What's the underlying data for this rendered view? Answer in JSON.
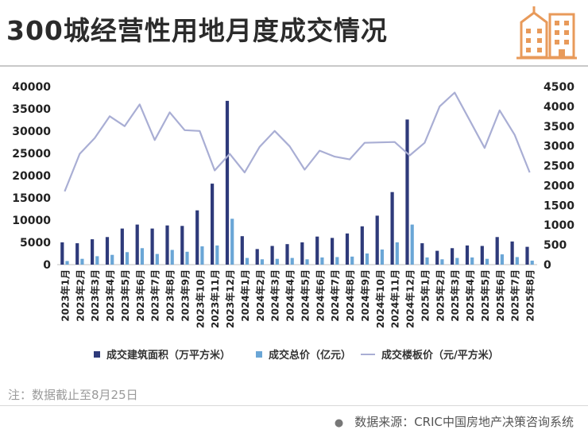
{
  "title": "300城经营性用地月度成交情况",
  "note": "注：数据截止至8月25日",
  "source": "数据来源：CRIC中国房地产决策咨询系统",
  "colors": {
    "area": "#2e3a7a",
    "total": "#6aa6d6",
    "price": "#a9aed4",
    "logo": "#e89a5a"
  },
  "icons": {
    "logo": "building-icon",
    "source_bullet": "bullet-dot-icon"
  },
  "chart_data": {
    "type": "bar",
    "categories": [
      "2023年1月",
      "2023年2月",
      "2023年3月",
      "2023年4月",
      "2023年5月",
      "2023年6月",
      "2023年7月",
      "2023年8月",
      "2023年9月",
      "2023年10月",
      "2023年11月",
      "2023年12月",
      "2024年1月",
      "2024年2月",
      "2024年3月",
      "2024年4月",
      "2024年5月",
      "2024年6月",
      "2024年7月",
      "2024年8月",
      "2024年9月",
      "2024年10月",
      "2024年11月",
      "2024年12月",
      "2025年1月",
      "2025年2月",
      "2025年3月",
      "2025年4月",
      "2025年5月",
      "2025年6月",
      "2025年7月",
      "2025年8月"
    ],
    "series": [
      {
        "name": "成交建筑面积（万平方米）",
        "type": "bar",
        "axis": "left",
        "values": [
          5000,
          4800,
          5700,
          6200,
          8100,
          9000,
          8100,
          8800,
          8700,
          12200,
          18200,
          36800,
          6400,
          3500,
          4200,
          4600,
          5000,
          6300,
          6000,
          7000,
          8600,
          11000,
          16300,
          32600,
          4800,
          3100,
          3700,
          4300,
          4200,
          6200,
          5200,
          4000
        ]
      },
      {
        "name": "成交总价（亿元）",
        "type": "bar",
        "axis": "left",
        "values": [
          800,
          1300,
          1900,
          2200,
          2800,
          3700,
          2400,
          3300,
          2900,
          4100,
          4300,
          10300,
          1500,
          1200,
          1300,
          1500,
          1200,
          1600,
          1700,
          1800,
          2500,
          3400,
          5000,
          9000,
          1600,
          1200,
          1500,
          1600,
          1300,
          2300,
          1700,
          900
        ]
      },
      {
        "name": "成交楼板价（元/平方米）",
        "type": "line",
        "axis": "right",
        "values": [
          1850,
          2800,
          3200,
          3750,
          3500,
          4050,
          3150,
          3850,
          3400,
          3380,
          2380,
          2800,
          2330,
          2980,
          3380,
          2990,
          2400,
          2880,
          2730,
          2660,
          3080,
          3090,
          3100,
          2760,
          3080,
          4000,
          4350,
          3650,
          2950,
          3900,
          3280,
          2330
        ]
      }
    ],
    "ylim": [
      0,
      40000
    ],
    "y_ticks": [
      "0",
      "5000",
      "10000",
      "15000",
      "20000",
      "25000",
      "30000",
      "35000",
      "40000"
    ],
    "y2lim": [
      0,
      4500
    ],
    "y2_ticks": [
      "0",
      "500",
      "1000",
      "1500",
      "2000",
      "2500",
      "3000",
      "3500",
      "4000",
      "4500"
    ],
    "grid": false,
    "legend_position": "bottom"
  }
}
